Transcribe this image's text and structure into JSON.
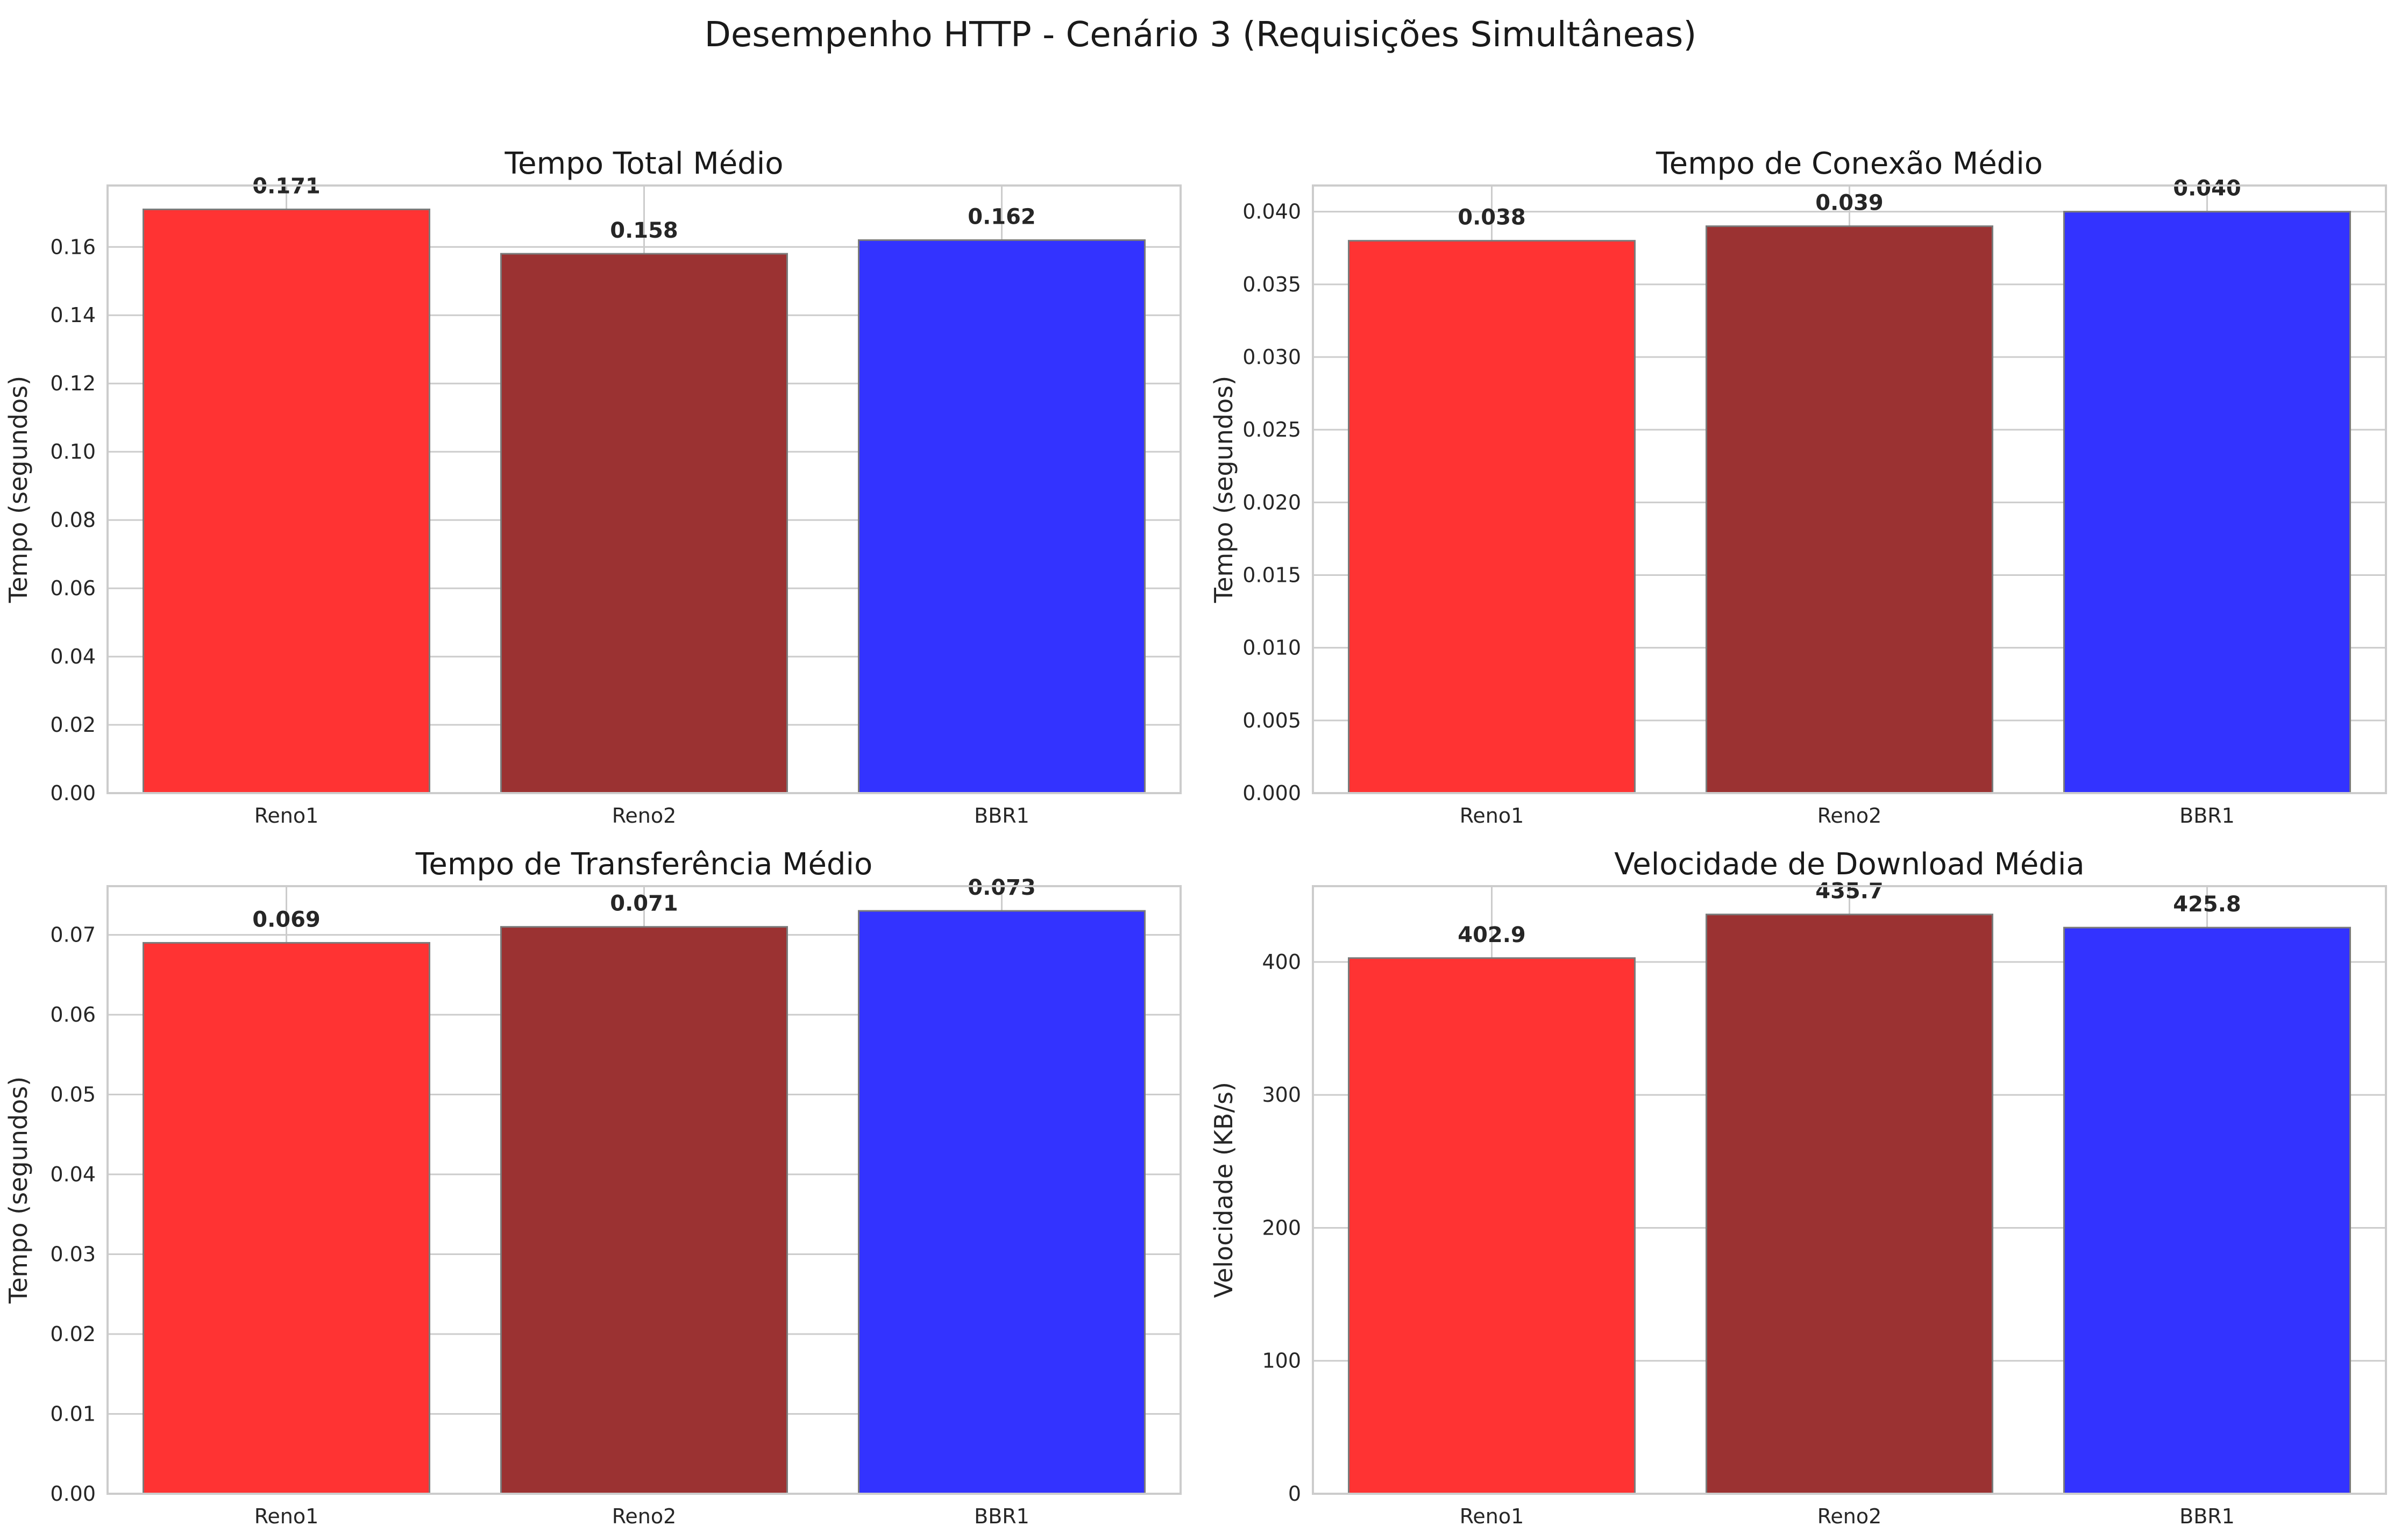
{
  "figure": {
    "suptitle": "Desempenho HTTP - Cenário 3 (Requisições Simultâneas)"
  },
  "chart_data": [
    {
      "type": "bar",
      "title": "Tempo Total Médio",
      "xlabel": "",
      "ylabel": "Tempo (segundos)",
      "categories": [
        "Reno1",
        "Reno2",
        "BBR1"
      ],
      "values": [
        0.171,
        0.158,
        0.162
      ],
      "value_labels": [
        "0.171",
        "0.158",
        "0.162"
      ],
      "colors": [
        "#ff3333",
        "#9b3232",
        "#3333ff"
      ],
      "ylim": [
        0,
        0.178
      ],
      "yticks": [
        0,
        0.02,
        0.04,
        0.06,
        0.08,
        0.1,
        0.12,
        0.14,
        0.16
      ],
      "ytick_labels": [
        "0.00",
        "0.02",
        "0.04",
        "0.06",
        "0.08",
        "0.10",
        "0.12",
        "0.14",
        "0.16"
      ],
      "grid": true
    },
    {
      "type": "bar",
      "title": "Tempo de Conexão Médio",
      "xlabel": "",
      "ylabel": "Tempo (segundos)",
      "categories": [
        "Reno1",
        "Reno2",
        "BBR1"
      ],
      "values": [
        0.038,
        0.039,
        0.04
      ],
      "value_labels": [
        "0.038",
        "0.039",
        "0.040"
      ],
      "colors": [
        "#ff3333",
        "#9b3232",
        "#3333ff"
      ],
      "ylim": [
        0,
        0.0418
      ],
      "yticks": [
        0,
        0.005,
        0.01,
        0.015,
        0.02,
        0.025,
        0.03,
        0.035,
        0.04
      ],
      "ytick_labels": [
        "0.000",
        "0.005",
        "0.010",
        "0.015",
        "0.020",
        "0.025",
        "0.030",
        "0.035",
        "0.040"
      ],
      "grid": true
    },
    {
      "type": "bar",
      "title": "Tempo de Transferência Médio",
      "xlabel": "",
      "ylabel": "Tempo (segundos)",
      "categories": [
        "Reno1",
        "Reno2",
        "BBR1"
      ],
      "values": [
        0.069,
        0.071,
        0.073
      ],
      "value_labels": [
        "0.069",
        "0.071",
        "0.073"
      ],
      "colors": [
        "#ff3333",
        "#9b3232",
        "#3333ff"
      ],
      "ylim": [
        0,
        0.0761
      ],
      "yticks": [
        0,
        0.01,
        0.02,
        0.03,
        0.04,
        0.05,
        0.06,
        0.07
      ],
      "ytick_labels": [
        "0.00",
        "0.01",
        "0.02",
        "0.03",
        "0.04",
        "0.05",
        "0.06",
        "0.07"
      ],
      "grid": true
    },
    {
      "type": "bar",
      "title": "Velocidade de Download Média",
      "xlabel": "",
      "ylabel": "Velocidade (KB/s)",
      "categories": [
        "Reno1",
        "Reno2",
        "BBR1"
      ],
      "values": [
        402.9,
        435.7,
        425.8
      ],
      "value_labels": [
        "402.9",
        "435.7",
        "425.8"
      ],
      "colors": [
        "#ff3333",
        "#9b3232",
        "#3333ff"
      ],
      "ylim": [
        0,
        457
      ],
      "yticks": [
        0,
        100,
        200,
        300,
        400
      ],
      "ytick_labels": [
        "0",
        "100",
        "200",
        "300",
        "400"
      ],
      "grid": true
    }
  ]
}
